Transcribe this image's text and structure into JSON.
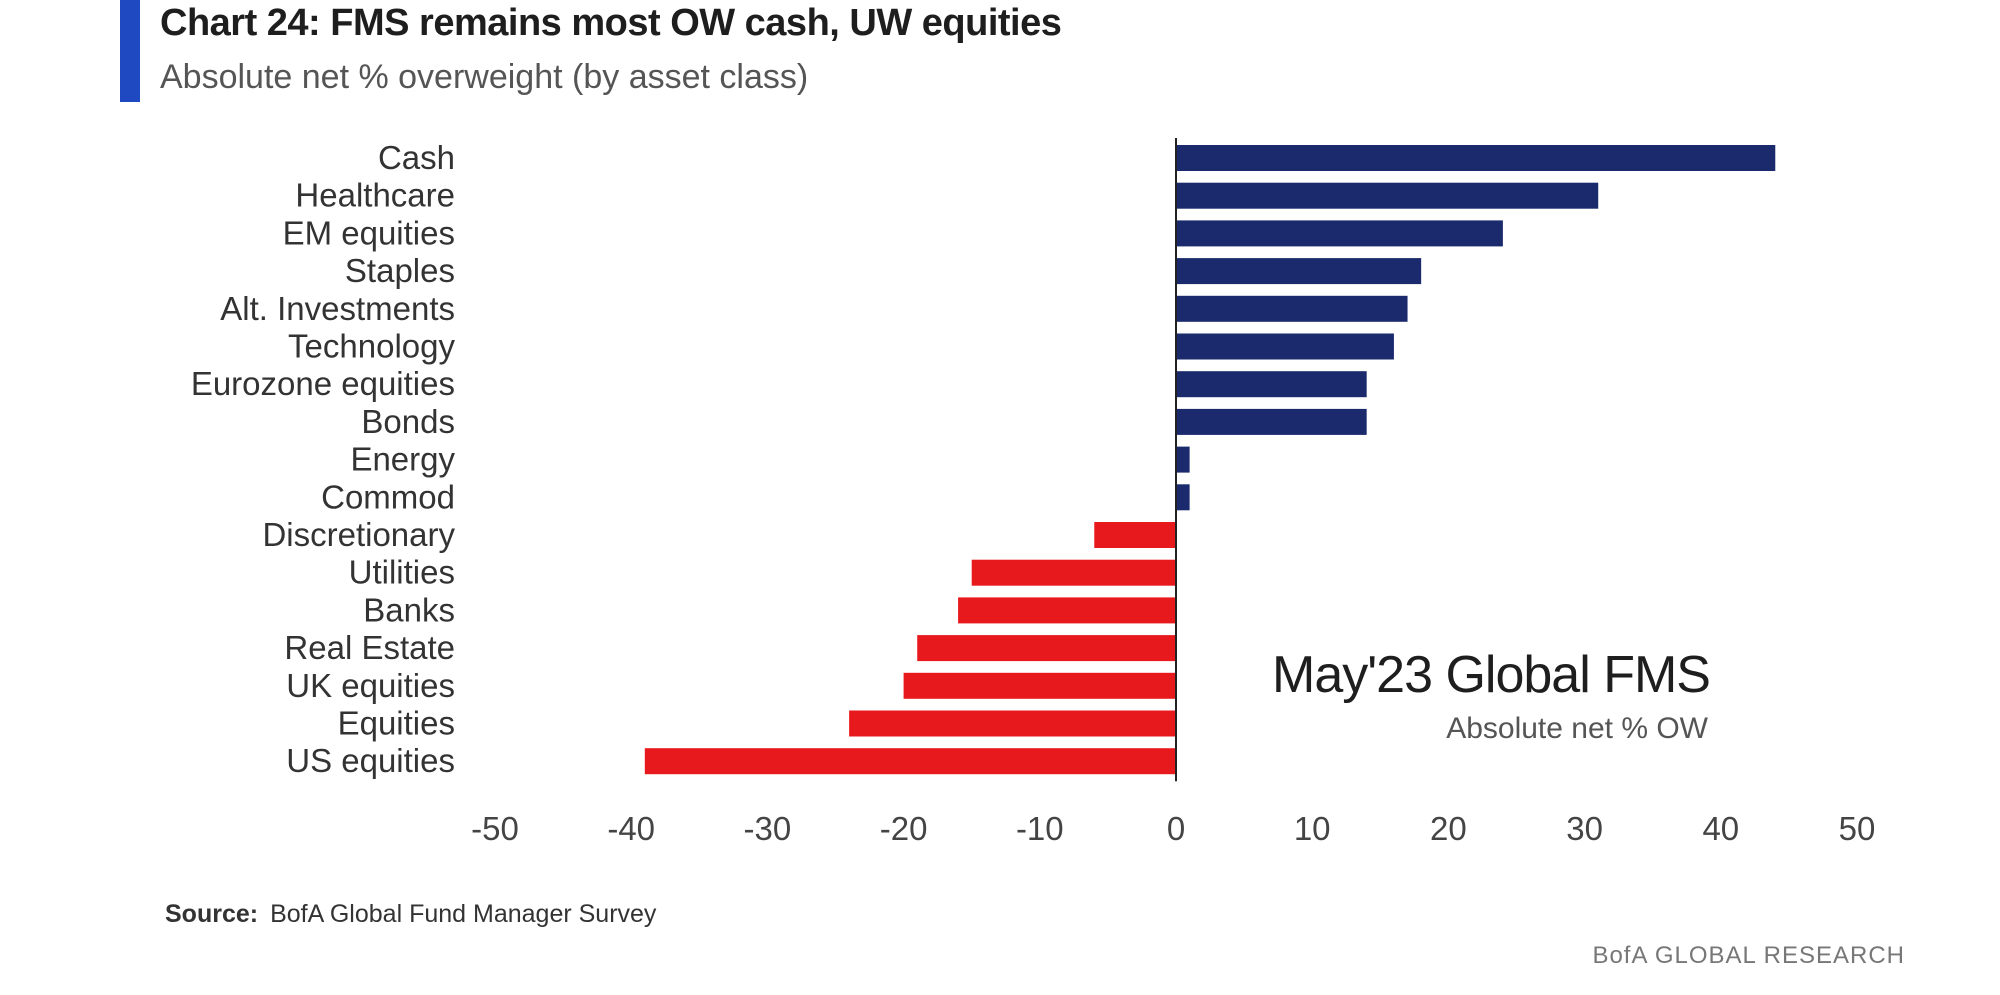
{
  "header": {
    "title": "Chart 24: FMS remains most OW cash, UW equities",
    "subtitle": "Absolute net % overweight (by asset class)"
  },
  "annotation": {
    "main": "May'23 Global FMS",
    "sub": "Absolute net % OW"
  },
  "footer": {
    "source_label": "Source:",
    "source_text": "BofA Global Fund Manager Survey",
    "brand": "BofA GLOBAL RESEARCH"
  },
  "colors": {
    "accent": "#1f49c0",
    "positive": "#1a2a6c",
    "negative": "#e8191c",
    "axis": "#222222"
  },
  "chart_data": {
    "type": "bar",
    "orientation": "horizontal",
    "title": "Chart 24: FMS remains most OW cash, UW equities",
    "subtitle": "Absolute net % overweight (by asset class)",
    "categories": [
      "Cash",
      "Healthcare",
      "EM equities",
      "Staples",
      "Alt. Investments",
      "Technology",
      "Eurozone equities",
      "Bonds",
      "Energy",
      "Commod",
      "Discretionary",
      "Utilities",
      "Banks",
      "Real Estate",
      "UK equities",
      "Equities",
      "US equities"
    ],
    "values": [
      44,
      31,
      24,
      18,
      17,
      16,
      14,
      14,
      1,
      1,
      -6,
      -15,
      -16,
      -19,
      -20,
      -24,
      -39
    ],
    "xlim": [
      -50,
      50
    ],
    "xticks": [
      -50,
      -40,
      -30,
      -20,
      -10,
      0,
      10,
      20,
      30,
      40,
      50
    ],
    "grid": false,
    "legend": "none"
  }
}
